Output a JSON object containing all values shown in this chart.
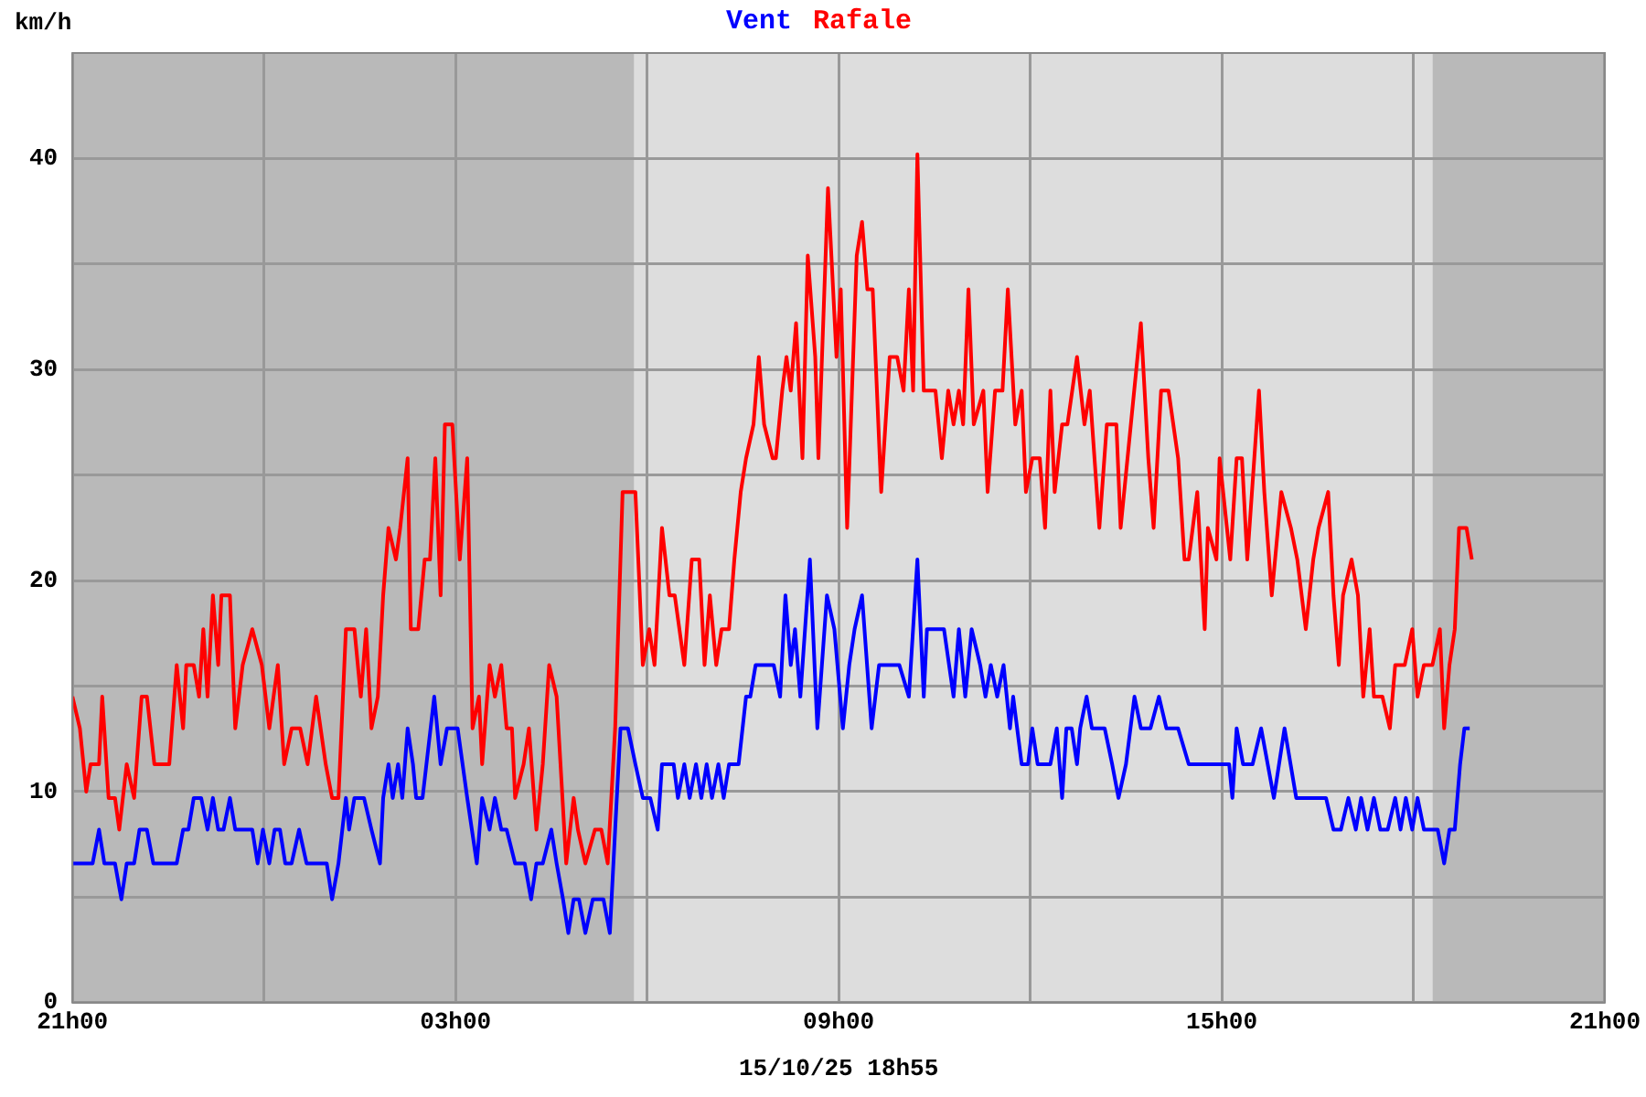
{
  "chart_data": {
    "type": "line",
    "ylabel": "km/h",
    "legend": "top",
    "grid": true,
    "marker": "none",
    "line_style": "solid",
    "xlim": [
      "--10-14T21:00",
      "--10-15T21:00"
    ],
    "xticks": [
      {
        "value": "--10-14T21:00",
        "label": "21h00"
      },
      {
        "value": "--10-15T00:00",
        "label": null
      },
      {
        "value": "--10-15T03:00",
        "label": "03h00"
      },
      {
        "value": "--10-15T06:00",
        "label": null
      },
      {
        "value": "--10-15T09:00",
        "label": "09h00"
      },
      {
        "value": "--10-15T12:00",
        "label": null
      },
      {
        "value": "--10-15T15:00",
        "label": "15h00"
      },
      {
        "value": "--10-15T18:00",
        "label": null
      },
      {
        "value": "--10-15T21:00",
        "label": "21h00"
      }
    ],
    "ylim": [
      0,
      45
    ],
    "yticks": [
      0,
      {
        "value": 5,
        "label": null
      },
      10,
      {
        "value": 15,
        "label": null
      },
      20,
      {
        "value": 25,
        "label": null
      },
      30,
      {
        "value": 35,
        "label": null
      },
      40
    ],
    "bands": [
      {
        "axis": "x",
        "from": "--10-14T21:00",
        "to": "--10-15T05:48",
        "color": "#b9b9b9"
      },
      {
        "axis": "x",
        "from": "--10-15T05:48",
        "to": "--10-15T18:18",
        "color": "#dddddd"
      },
      {
        "axis": "x",
        "from": "--10-15T18:18",
        "to": "--10-15T21:00",
        "color": "#b9b9b9"
      }
    ],
    "annotations": [
      "15/10/25 18h55"
    ],
    "series": [
      {
        "name": "Vent",
        "color": "#0000ff",
        "x": [
          "--10-14T21:00",
          "--10-14T21:19",
          "--10-14T21:25",
          "--10-14T21:30",
          "--10-14T21:40",
          "--10-14T21:46",
          "--10-14T21:51",
          "--10-14T21:58",
          "--10-14T22:03",
          "--10-14T22:10",
          "--10-14T22:16",
          "--10-14T22:38",
          "--10-14T22:44",
          "--10-14T22:49",
          "--10-14T22:54",
          "--10-14T23:01",
          "--10-14T23:07",
          "--10-14T23:12",
          "--10-14T23:17",
          "--10-14T23:22",
          "--10-14T23:28",
          "--10-14T23:33",
          "--10-14T23:49",
          "--10-14T23:54",
          "--10-14T23:59",
          "--10-15T00:05",
          "--10-15T00:10",
          "--10-15T00:15",
          "--10-15T00:20",
          "--10-15T00:26",
          "--10-15T00:33",
          "--10-15T00:40",
          "--10-15T00:59",
          "--10-15T01:04",
          "--10-15T01:10",
          "--10-15T01:17",
          "--10-15T01:20",
          "--10-15T01:25",
          "--10-15T01:34",
          "--10-15T01:41",
          "--10-15T01:49",
          "--10-15T01:52",
          "--10-15T01:57",
          "--10-15T02:01",
          "--10-15T02:06",
          "--10-15T02:10",
          "--10-15T02:15",
          "--10-15T02:20",
          "--10-15T02:23",
          "--10-15T02:29",
          "--10-15T02:40",
          "--10-15T02:46",
          "--10-15T02:52",
          "--10-15T03:02",
          "--10-15T03:11",
          "--10-15T03:20",
          "--10-15T03:25",
          "--10-15T03:32",
          "--10-15T03:37",
          "--10-15T03:43",
          "--10-15T03:48",
          "--10-15T03:56",
          "--10-15T04:05",
          "--10-15T04:11",
          "--10-15T04:16",
          "--10-15T04:22",
          "--10-15T04:30",
          "--10-15T04:35",
          "--10-15T04:41",
          "--10-15T04:46",
          "--10-15T04:51",
          "--10-15T04:56",
          "--10-15T05:02",
          "--10-15T05:09",
          "--10-15T05:19",
          "--10-15T05:25",
          "--10-15T05:30",
          "--10-15T05:35",
          "--10-15T05:42",
          "--10-15T05:49",
          "--10-15T05:56",
          "--10-15T06:03",
          "--10-15T06:10",
          "--10-15T06:14",
          "--10-15T06:25",
          "--10-15T06:29",
          "--10-15T06:35",
          "--10-15T06:40",
          "--10-15T06:46",
          "--10-15T06:51",
          "--10-15T06:56",
          "--10-15T07:01",
          "--10-15T07:07",
          "--10-15T07:12",
          "--10-15T07:17",
          "--10-15T07:26",
          "--10-15T07:33",
          "--10-15T07:37",
          "--10-15T07:42",
          "--10-15T07:59",
          "--10-15T08:05",
          "--10-15T08:10",
          "--10-15T08:15",
          "--10-15T08:19",
          "--10-15T08:24",
          "--10-15T08:33",
          "--10-15T08:40",
          "--10-15T08:49",
          "--10-15T08:56",
          "--10-15T09:04",
          "--10-15T09:10",
          "--10-15T09:15",
          "--10-15T09:22",
          "--10-15T09:31",
          "--10-15T09:38",
          "--10-15T09:57",
          "--10-15T10:06",
          "--10-15T10:14",
          "--10-15T10:20",
          "--10-15T10:23",
          "--10-15T10:39",
          "--10-15T10:48",
          "--10-15T10:53",
          "--10-15T10:59",
          "--10-15T11:05",
          "--10-15T11:13",
          "--10-15T11:18",
          "--10-15T11:23",
          "--10-15T11:29",
          "--10-15T11:35",
          "--10-15T11:41",
          "--10-15T11:44",
          "--10-15T11:52",
          "--10-15T11:58",
          "--10-15T12:02",
          "--10-15T12:07",
          "--10-15T12:19",
          "--10-15T12:25",
          "--10-15T12:30",
          "--10-15T12:34",
          "--10-15T12:39",
          "--10-15T12:44",
          "--10-15T12:47",
          "--10-15T12:53",
          "--10-15T12:58",
          "--10-15T13:10",
          "--10-15T13:17",
          "--10-15T13:23",
          "--10-15T13:30",
          "--10-15T13:38",
          "--10-15T13:44",
          "--10-15T13:53",
          "--10-15T14:01",
          "--10-15T14:08",
          "--10-15T14:19",
          "--10-15T14:29",
          "--10-15T15:07",
          "--10-15T15:10",
          "--10-15T15:14",
          "--10-15T15:20",
          "--10-15T15:29",
          "--10-15T15:37",
          "--10-15T15:49",
          "--10-15T15:59",
          "--10-15T16:10",
          "--10-15T16:38",
          "--10-15T16:45",
          "--10-15T16:52",
          "--10-15T16:59",
          "--10-15T17:06",
          "--10-15T17:11",
          "--10-15T17:17",
          "--10-15T17:23",
          "--10-15T17:29",
          "--10-15T17:36",
          "--10-15T17:43",
          "--10-15T17:48",
          "--10-15T17:53",
          "--10-15T17:59",
          "--10-15T18:04",
          "--10-15T18:10",
          "--10-15T18:23",
          "--10-15T18:29",
          "--10-15T18:34",
          "--10-15T18:39",
          "--10-15T18:44",
          "--10-15T18:48",
          "--10-15T18:53"
        ],
        "values": [
          6.6,
          6.6,
          8.2,
          6.6,
          6.6,
          4.9,
          6.6,
          6.6,
          8.2,
          8.2,
          6.6,
          6.6,
          8.2,
          8.2,
          9.7,
          9.7,
          8.2,
          9.7,
          8.2,
          8.2,
          9.7,
          8.2,
          8.2,
          6.6,
          8.2,
          6.6,
          8.2,
          8.2,
          6.6,
          6.6,
          8.2,
          6.6,
          6.6,
          4.9,
          6.6,
          9.7,
          8.2,
          9.7,
          9.7,
          8.2,
          6.6,
          9.7,
          11.3,
          9.7,
          11.3,
          9.7,
          13,
          11.3,
          9.7,
          9.7,
          14.5,
          11.3,
          13,
          13,
          9.7,
          6.6,
          9.7,
          8.2,
          9.7,
          8.2,
          8.2,
          6.6,
          6.6,
          4.9,
          6.6,
          6.6,
          8.2,
          6.6,
          4.9,
          3.3,
          4.9,
          4.9,
          3.3,
          4.9,
          4.9,
          3.3,
          8.2,
          13,
          13,
          11.3,
          9.7,
          9.7,
          8.2,
          11.3,
          11.3,
          9.7,
          11.3,
          9.7,
          11.3,
          9.7,
          11.3,
          9.7,
          11.3,
          9.7,
          11.3,
          11.3,
          14.5,
          14.5,
          16,
          16,
          14.5,
          19.3,
          16,
          17.7,
          14.5,
          21,
          13,
          19.3,
          17.7,
          13,
          16,
          17.7,
          19.3,
          13,
          16,
          16,
          14.5,
          21,
          14.5,
          17.7,
          17.7,
          14.5,
          17.7,
          14.5,
          17.7,
          16,
          14.5,
          16,
          14.5,
          16,
          13,
          14.5,
          11.3,
          11.3,
          13,
          11.3,
          11.3,
          13,
          9.7,
          13,
          13,
          11.3,
          13,
          14.5,
          13,
          13,
          11.3,
          9.7,
          11.3,
          14.5,
          13,
          13,
          14.5,
          13,
          13,
          11.3,
          11.3,
          9.7,
          13,
          11.3,
          11.3,
          13,
          9.7,
          13,
          9.7,
          9.7,
          8.2,
          8.2,
          9.7,
          8.2,
          9.7,
          8.2,
          9.7,
          8.2,
          8.2,
          9.7,
          8.2,
          9.7,
          8.2,
          9.7,
          8.2,
          8.2,
          6.6,
          8.2,
          8.2,
          11.3,
          13,
          13
        ]
      },
      {
        "name": "Rafale",
        "color": "#ff0000",
        "x": [
          "--10-14T21:00",
          "--10-14T21:07",
          "--10-14T21:13",
          "--10-14T21:17",
          "--10-14T21:25",
          "--10-14T21:28",
          "--10-14T21:34",
          "--10-14T21:40",
          "--10-14T21:44",
          "--10-14T21:51",
          "--10-14T21:58",
          "--10-14T22:05",
          "--10-14T22:10",
          "--10-14T22:17",
          "--10-14T22:31",
          "--10-14T22:38",
          "--10-14T22:44",
          "--10-14T22:47",
          "--10-14T22:54",
          "--10-14T22:59",
          "--10-14T23:03",
          "--10-14T23:07",
          "--10-14T23:12",
          "--10-14T23:17",
          "--10-14T23:20",
          "--10-14T23:28",
          "--10-14T23:33",
          "--10-14T23:40",
          "--10-14T23:49",
          "--10-14T23:58",
          "--10-15T00:05",
          "--10-15T00:13",
          "--10-15T00:19",
          "--10-15T00:26",
          "--10-15T00:34",
          "--10-15T00:41",
          "--10-15T00:49",
          "--10-15T00:58",
          "--10-15T01:04",
          "--10-15T01:10",
          "--10-15T01:17",
          "--10-15T01:25",
          "--10-15T01:31",
          "--10-15T01:36",
          "--10-15T01:41",
          "--10-15T01:47",
          "--10-15T01:52",
          "--10-15T01:57",
          "--10-15T02:04",
          "--10-15T02:08",
          "--10-15T02:15",
          "--10-15T02:18",
          "--10-15T02:25",
          "--10-15T02:31",
          "--10-15T02:36",
          "--10-15T02:41",
          "--10-15T02:46",
          "--10-15T02:50",
          "--10-15T02:57",
          "--10-15T03:04",
          "--10-15T03:11",
          "--10-15T03:16",
          "--10-15T03:22",
          "--10-15T03:25",
          "--10-15T03:32",
          "--10-15T03:37",
          "--10-15T03:43",
          "--10-15T03:48",
          "--10-15T03:53",
          "--10-15T03:56",
          "--10-15T04:04",
          "--10-15T04:09",
          "--10-15T04:16",
          "--10-15T04:22",
          "--10-15T04:28",
          "--10-15T04:35",
          "--10-15T04:44",
          "--10-15T04:51",
          "--10-15T04:55",
          "--10-15T05:02",
          "--10-15T05:11",
          "--10-15T05:17",
          "--10-15T05:23",
          "--10-15T05:30",
          "--10-15T05:37",
          "--10-15T05:49",
          "--10-15T05:56",
          "--10-15T06:02",
          "--10-15T06:07",
          "--10-15T06:14",
          "--10-15T06:21",
          "--10-15T06:26",
          "--10-15T06:35",
          "--10-15T06:42",
          "--10-15T06:49",
          "--10-15T06:54",
          "--10-15T06:59",
          "--10-15T07:05",
          "--10-15T07:10",
          "--10-15T07:17",
          "--10-15T07:22",
          "--10-15T07:28",
          "--10-15T07:33",
          "--10-15T07:40",
          "--10-15T07:45",
          "--10-15T07:50",
          "--10-15T07:58",
          "--10-15T08:01",
          "--10-15T08:07",
          "--10-15T08:11",
          "--10-15T08:15",
          "--10-15T08:20",
          "--10-15T08:26",
          "--10-15T08:31",
          "--10-15T08:38",
          "--10-15T08:41",
          "--10-15T08:50",
          "--10-15T08:58",
          "--10-15T09:02",
          "--10-15T09:08",
          "--10-15T09:17",
          "--10-15T09:22",
          "--10-15T09:27",
          "--10-15T09:32",
          "--10-15T09:40",
          "--10-15T09:48",
          "--10-15T09:55",
          "--10-15T10:01",
          "--10-15T10:06",
          "--10-15T10:10",
          "--10-15T10:14",
          "--10-15T10:20",
          "--10-15T10:31",
          "--10-15T10:37",
          "--10-15T10:43",
          "--10-15T10:48",
          "--10-15T10:53",
          "--10-15T10:57",
          "--10-15T11:02",
          "--10-15T11:07",
          "--10-15T11:16",
          "--10-15T11:20",
          "--10-15T11:27",
          "--10-15T11:34",
          "--10-15T11:39",
          "--10-15T11:46",
          "--10-15T11:52",
          "--10-15T11:56",
          "--10-15T12:02",
          "--10-15T12:09",
          "--10-15T12:14",
          "--10-15T12:19",
          "--10-15T12:23",
          "--10-15T12:30",
          "--10-15T12:35",
          "--10-15T12:44",
          "--10-15T12:51",
          "--10-15T12:56",
          "--10-15T13:05",
          "--10-15T13:12",
          "--10-15T13:21",
          "--10-15T13:25",
          "--10-15T13:44",
          "--10-15T13:51",
          "--10-15T13:56",
          "--10-15T14:03",
          "--10-15T14:10",
          "--10-15T14:19",
          "--10-15T14:25",
          "--10-15T14:29",
          "--10-15T14:37",
          "--10-15T14:44",
          "--10-15T14:47",
          "--10-15T14:55",
          "--10-15T14:58",
          "--10-15T15:08",
          "--10-15T15:14",
          "--10-15T15:19",
          "--10-15T15:24",
          "--10-15T15:35",
          "--10-15T15:40",
          "--10-15T15:47",
          "--10-15T15:56",
          "--10-15T16:05",
          "--10-15T16:11",
          "--10-15T16:19",
          "--10-15T16:26",
          "--10-15T16:31",
          "--10-15T16:40",
          "--10-15T16:45",
          "--10-15T16:50",
          "--10-15T16:54",
          "--10-15T17:02",
          "--10-15T17:08",
          "--10-15T17:13",
          "--10-15T17:19",
          "--10-15T17:23",
          "--10-15T17:31",
          "--10-15T17:38",
          "--10-15T17:43",
          "--10-15T17:52",
          "--10-15T17:59",
          "--10-15T18:04",
          "--10-15T18:10",
          "--10-15T18:18",
          "--10-15T18:25",
          "--10-15T18:29",
          "--10-15T18:34",
          "--10-15T18:39",
          "--10-15T18:43",
          "--10-15T18:50",
          "--10-15T18:55"
        ],
        "values": [
          14.5,
          13,
          10,
          11.3,
          11.3,
          14.5,
          9.7,
          9.7,
          8.2,
          11.3,
          9.7,
          14.5,
          14.5,
          11.3,
          11.3,
          16,
          13,
          16,
          16,
          14.5,
          17.7,
          14.5,
          19.3,
          16,
          19.3,
          19.3,
          13,
          16,
          17.7,
          16,
          13,
          16,
          11.3,
          13,
          13,
          11.3,
          14.5,
          11.3,
          9.7,
          9.7,
          17.7,
          17.7,
          14.5,
          17.7,
          13,
          14.5,
          19.3,
          22.5,
          21,
          22.5,
          25.8,
          17.7,
          17.7,
          21,
          21,
          25.8,
          19.3,
          27.4,
          27.4,
          21,
          25.8,
          13,
          14.5,
          11.3,
          16,
          14.5,
          16,
          13,
          13,
          9.7,
          11.3,
          13,
          8.2,
          11.3,
          16,
          14.5,
          6.6,
          9.7,
          8.2,
          6.6,
          8.2,
          8.2,
          6.6,
          13,
          24.2,
          24.2,
          16,
          17.7,
          16,
          22.5,
          19.3,
          19.3,
          16,
          21,
          21,
          16,
          19.3,
          16,
          17.7,
          17.7,
          21,
          24.2,
          25.8,
          27.4,
          30.6,
          27.4,
          25.8,
          25.8,
          29,
          30.6,
          29,
          32.2,
          25.8,
          35.4,
          30.6,
          25.8,
          38.6,
          30.6,
          33.8,
          22.5,
          35.4,
          37,
          33.8,
          33.8,
          24.2,
          30.6,
          30.6,
          29,
          33.8,
          29,
          40.2,
          29,
          29,
          25.8,
          29,
          27.4,
          29,
          27.4,
          33.8,
          27.4,
          29,
          24.2,
          29,
          29,
          33.8,
          27.4,
          29,
          24.2,
          25.8,
          25.8,
          22.5,
          29,
          24.2,
          27.4,
          27.4,
          30.6,
          27.4,
          29,
          22.5,
          27.4,
          27.4,
          22.5,
          32.2,
          25.8,
          22.5,
          29,
          29,
          25.8,
          21,
          21,
          24.2,
          17.7,
          22.5,
          21,
          25.8,
          21,
          25.8,
          25.8,
          21,
          29,
          24.2,
          19.3,
          24.2,
          22.5,
          21,
          17.7,
          21,
          22.5,
          24.2,
          19.3,
          16,
          19.3,
          21,
          19.3,
          14.5,
          17.7,
          14.5,
          14.5,
          13,
          16,
          16,
          17.7,
          14.5,
          16,
          16,
          17.7,
          13,
          16,
          17.7,
          22.5,
          22.5,
          21
        ]
      }
    ]
  }
}
